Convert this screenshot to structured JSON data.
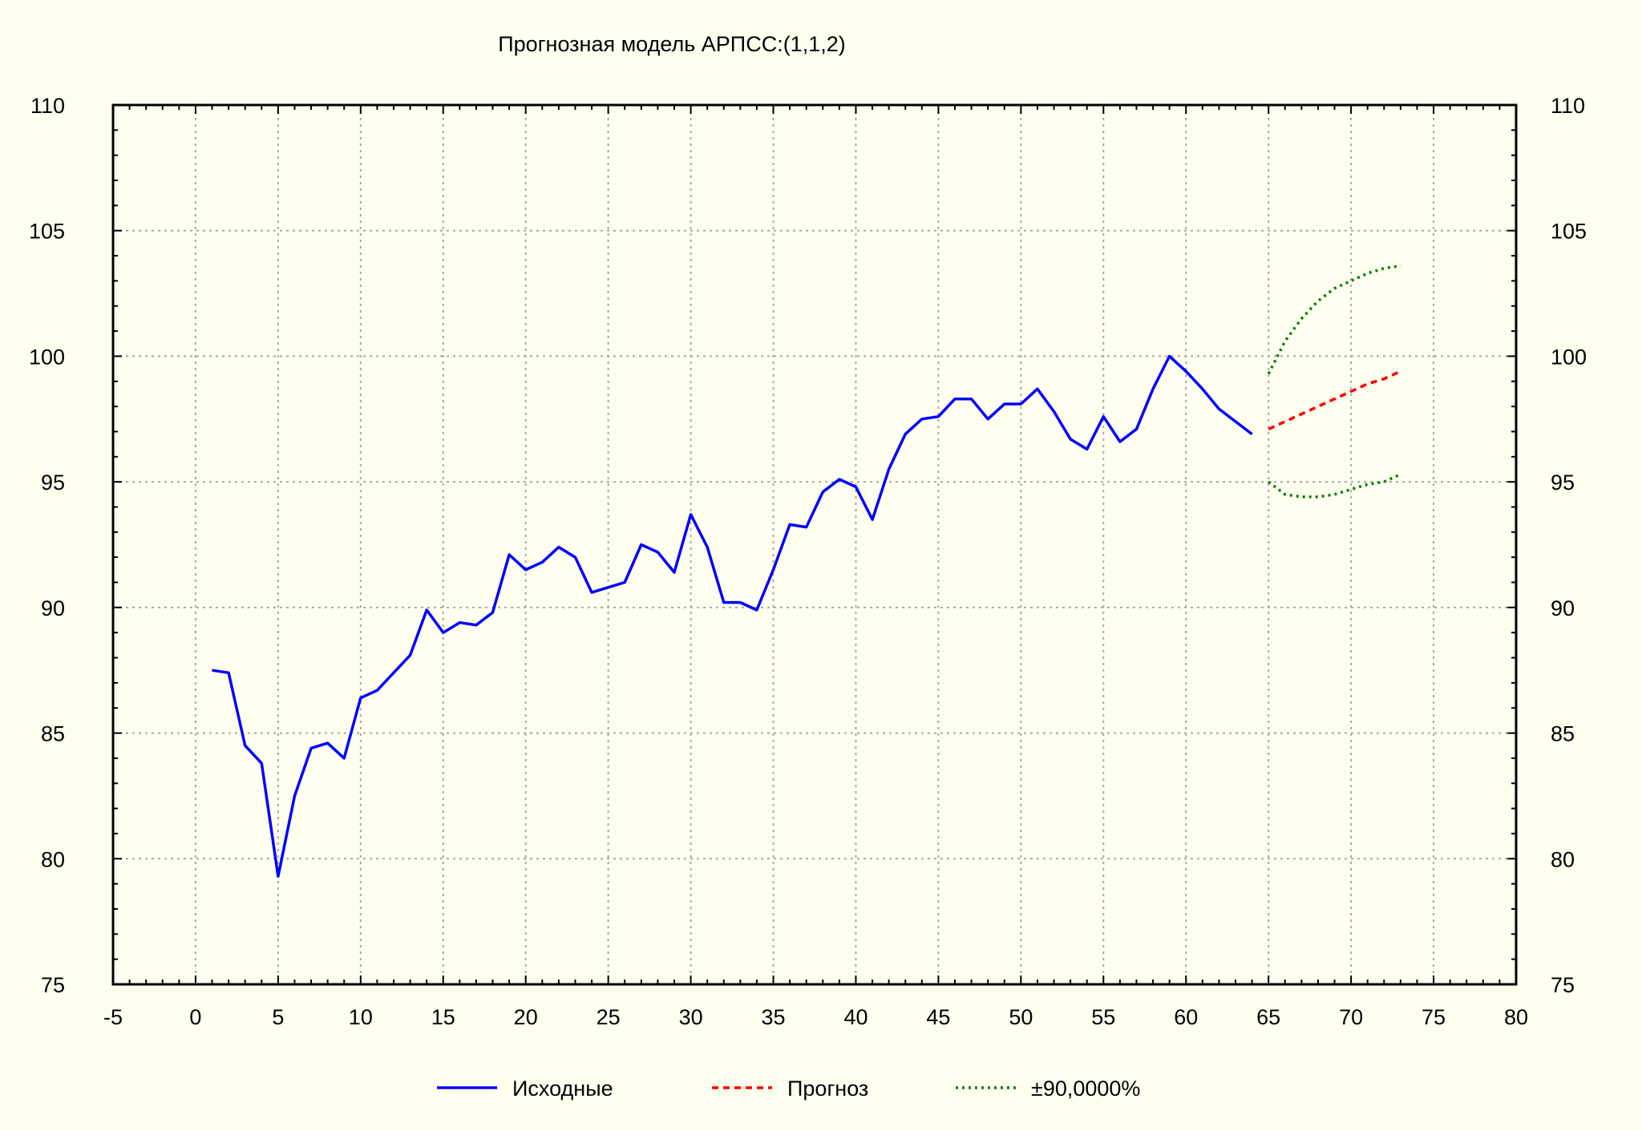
{
  "chart_data": {
    "type": "line",
    "title": "Прогнозная модель АРПСС:(1,1,2)",
    "xlabel": "",
    "ylabel": "",
    "xlim": [
      -5,
      80
    ],
    "ylim": [
      75,
      110
    ],
    "x_ticks": [
      -5,
      0,
      5,
      10,
      15,
      20,
      25,
      30,
      35,
      40,
      45,
      50,
      55,
      60,
      65,
      70,
      75,
      80
    ],
    "y_ticks": [
      75,
      80,
      85,
      90,
      95,
      100,
      105,
      110
    ],
    "grid": true,
    "right_axis_mirror": true,
    "legend_position": "bottom",
    "series": [
      {
        "name": "Исходные",
        "color": "#0000ff",
        "style": "solid",
        "x": [
          1,
          2,
          3,
          4,
          5,
          6,
          7,
          8,
          9,
          10,
          11,
          12,
          13,
          14,
          15,
          16,
          17,
          18,
          19,
          20,
          21,
          22,
          23,
          24,
          25,
          26,
          27,
          28,
          29,
          30,
          31,
          32,
          33,
          34,
          35,
          36,
          37,
          38,
          39,
          40,
          41,
          42,
          43,
          44,
          45,
          46,
          47,
          48,
          49,
          50,
          51,
          52,
          53,
          54,
          55,
          56,
          57,
          58,
          59,
          60,
          61,
          62,
          63,
          64
        ],
        "values": [
          87.5,
          87.4,
          84.5,
          83.8,
          79.3,
          82.5,
          84.4,
          84.6,
          84.0,
          86.4,
          86.7,
          87.4,
          88.1,
          89.9,
          89.0,
          89.4,
          89.3,
          89.8,
          92.1,
          91.5,
          91.8,
          92.4,
          92.0,
          90.6,
          90.8,
          91.0,
          92.5,
          92.2,
          91.4,
          93.7,
          92.4,
          90.2,
          90.2,
          89.9,
          91.5,
          93.3,
          93.2,
          94.6,
          95.1,
          94.8,
          93.5,
          95.5,
          96.9,
          97.5,
          97.6,
          98.3,
          98.3,
          97.5,
          98.1,
          98.1,
          98.7,
          97.8,
          96.7,
          96.3,
          97.6,
          96.6,
          97.1,
          98.7,
          100.0,
          99.4,
          98.7,
          97.9,
          97.4,
          96.9
        ]
      },
      {
        "name": "Прогноз",
        "color": "#ff0000",
        "style": "dashed",
        "x": [
          65,
          66,
          67,
          68,
          69,
          70,
          71,
          72,
          73
        ],
        "values": [
          97.1,
          97.4,
          97.7,
          98.0,
          98.3,
          98.6,
          98.9,
          99.1,
          99.4
        ]
      },
      {
        "name": "±90,0000%",
        "color": "#008000",
        "style": "dotted",
        "x": [
          65,
          66,
          67,
          68,
          69,
          70,
          71,
          72,
          73
        ],
        "values": [
          99.3,
          100.6,
          101.5,
          102.2,
          102.7,
          103.0,
          103.3,
          103.5,
          103.6
        ]
      },
      {
        "name": "",
        "color": "#008000",
        "style": "dotted",
        "x": [
          65,
          66,
          67,
          68,
          69,
          70,
          71,
          72,
          73
        ],
        "values": [
          95.0,
          94.5,
          94.4,
          94.4,
          94.5,
          94.7,
          94.9,
          95.0,
          95.3
        ]
      }
    ],
    "legend": [
      "Исходные",
      "Прогноз",
      "±90,0000%"
    ]
  }
}
